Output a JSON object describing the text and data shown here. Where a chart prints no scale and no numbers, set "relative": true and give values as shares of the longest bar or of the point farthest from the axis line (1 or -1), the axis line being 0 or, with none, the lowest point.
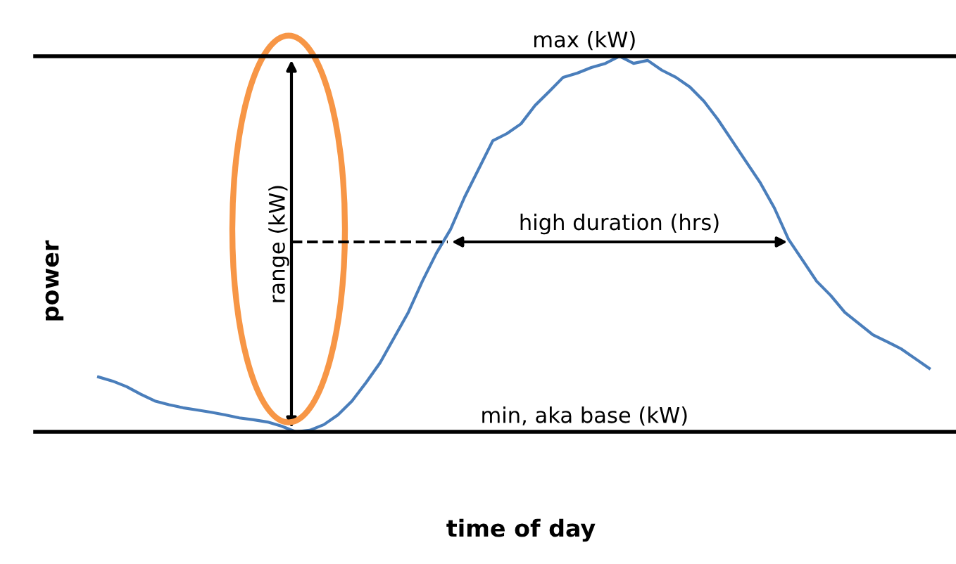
{
  "chart_data": {
    "type": "line",
    "relative": true,
    "xlabel": "time of day",
    "ylabel": "power",
    "categories": [
      null,
      null,
      null,
      null,
      null,
      null,
      null,
      null,
      null,
      null,
      null,
      null,
      null,
      null,
      null,
      null,
      null,
      null,
      null,
      null,
      null,
      null,
      null,
      null,
      null,
      null,
      null,
      null,
      null,
      null,
      null,
      null,
      null,
      null,
      null,
      null,
      null,
      null,
      null,
      null,
      null,
      null,
      null,
      null,
      null,
      null,
      null,
      null,
      null,
      null,
      null,
      null,
      null,
      null,
      null,
      null,
      null,
      null,
      null,
      null
    ],
    "series": [
      {
        "color": "#4a7ebb",
        "values": [
          0.146,
          0.135,
          0.12,
          0.1,
          0.082,
          0.072,
          0.064,
          0.058,
          0.052,
          0.045,
          0.037,
          0.032,
          0.026,
          0.015,
          0,
          0.004,
          0.019,
          0.045,
          0.082,
          0.131,
          0.184,
          0.251,
          0.318,
          0.401,
          0.476,
          0.539,
          0.625,
          0.7,
          0.775,
          0.794,
          0.82,
          0.869,
          0.906,
          0.944,
          0.955,
          0.97,
          0.981,
          1.0,
          0.981,
          0.989,
          0.963,
          0.944,
          0.918,
          0.88,
          0.831,
          0.775,
          0.719,
          0.663,
          0.596,
          0.513,
          0.457,
          0.401,
          0.363,
          0.318,
          0.288,
          0.258,
          0.24,
          0.221,
          0.195,
          0.169
        ]
      }
    ],
    "ref_lines": [
      {
        "axis": "y",
        "value": 1,
        "label": "max (kW)",
        "color": "#000000"
      },
      {
        "axis": "y",
        "value": 0,
        "label": "min, aka base (kW)",
        "color": "#000000"
      }
    ],
    "annotations": [
      "range (kW)",
      "high duration (hrs)"
    ]
  }
}
